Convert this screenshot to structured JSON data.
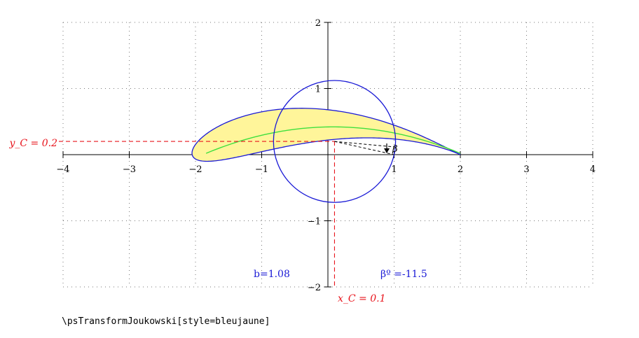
{
  "chart_data": {
    "type": "diagram",
    "xlim": [
      -4,
      4
    ],
    "ylim": [
      -2,
      2
    ],
    "x_ticks": [
      -4,
      -3,
      -2,
      -1,
      1,
      2,
      3,
      4
    ],
    "y_ticks": [
      -2,
      -1,
      1,
      2
    ],
    "x_tick_labels": [
      "−4",
      "−3",
      "−2",
      "−1",
      "1",
      "2",
      "3",
      "4"
    ],
    "y_tick_labels": [
      "−2",
      "−1",
      "1",
      "2"
    ],
    "grid": "dotted",
    "circle": {
      "center_x": 0.1,
      "center_y": 0.2,
      "b": 1.08,
      "beta_deg": -11.5
    },
    "annotations": {
      "yc_label": "y_C = 0.2",
      "xc_label": "x_C = 0.1",
      "b_label": "b=1.08",
      "beta_value_label": "βº =-11.5",
      "beta_symbol": "β"
    },
    "colors": {
      "circle": "#1a1ad6",
      "profile_outline": "#1a1ad6",
      "profile_fill": "#fff59a",
      "camber_line": "#3ee03e",
      "guides": "#e8141c"
    }
  },
  "caption": "\\psTransformJoukowski[style=bleujaune]"
}
